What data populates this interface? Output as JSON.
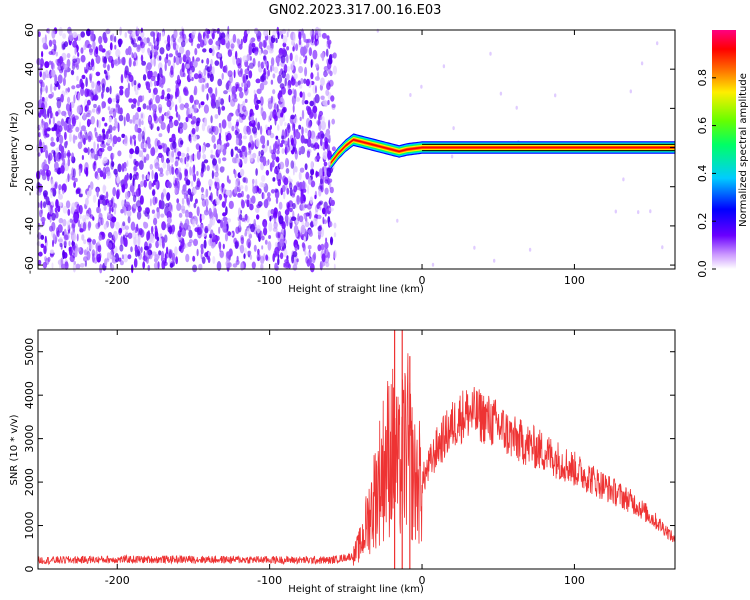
{
  "title": "GN02.2023.317.00.16.E03",
  "chart_data": [
    {
      "type": "heatmap",
      "xlabel": "Height of straight line (km)",
      "ylabel": "Frequency (Hz)",
      "xlim": [
        -252,
        166
      ],
      "ylim": [
        -62,
        60
      ],
      "xticks": [
        -200,
        -100,
        0,
        100
      ],
      "yticks": [
        -60,
        -40,
        -20,
        0,
        20,
        40,
        60
      ],
      "noise_region_x": [
        -252,
        -57
      ],
      "signal_band": {
        "x_start": -60,
        "x_end": 166,
        "center_hz": [
          {
            "x": -60,
            "y": -8
          },
          {
            "x": -55,
            "y": -3
          },
          {
            "x": -50,
            "y": 1
          },
          {
            "x": -45,
            "y": 4
          },
          {
            "x": -40,
            "y": 3
          },
          {
            "x": -35,
            "y": 2
          },
          {
            "x": -30,
            "y": 1
          },
          {
            "x": -25,
            "y": 0
          },
          {
            "x": -20,
            "y": -1
          },
          {
            "x": -15,
            "y": -2
          },
          {
            "x": -10,
            "y": -1
          },
          {
            "x": 0,
            "y": 0
          },
          {
            "x": 166,
            "y": 0
          }
        ]
      },
      "colorbar": {
        "label": "Normalized spectral amplitude",
        "ticks": [
          "0.0",
          "0.2",
          "0.4",
          "0.6",
          "0.8"
        ],
        "range": [
          0,
          1
        ]
      }
    },
    {
      "type": "line",
      "xlabel": "Height of straight line (km)",
      "ylabel": "SNR (10 * v/v)",
      "xlim": [
        -252,
        166
      ],
      "ylim": [
        0,
        5500
      ],
      "xticks": [
        -200,
        -100,
        0,
        100
      ],
      "yticks": [
        0,
        1000,
        2000,
        3000,
        4000,
        5000
      ],
      "series": [
        {
          "color": "#ee3333",
          "x": [
            -252,
            -200,
            -150,
            -100,
            -60,
            -45,
            -40,
            -35,
            -30,
            -25,
            -20,
            -15,
            -10,
            -5,
            0,
            10,
            20,
            25,
            30,
            40,
            50,
            60,
            80,
            100,
            120,
            140,
            160,
            166
          ],
          "values": [
            200,
            220,
            220,
            210,
            200,
            300,
            600,
            1200,
            1800,
            2400,
            2800,
            2200,
            3000,
            2000,
            2000,
            2800,
            3300,
            3500,
            3600,
            3500,
            3300,
            3000,
            2700,
            2300,
            1900,
            1500,
            900,
            650
          ]
        }
      ],
      "spikes": [
        {
          "x": -18,
          "y": 5500
        },
        {
          "x": -13,
          "y": 5500
        },
        {
          "x": -8,
          "y": 4900
        }
      ]
    }
  ]
}
